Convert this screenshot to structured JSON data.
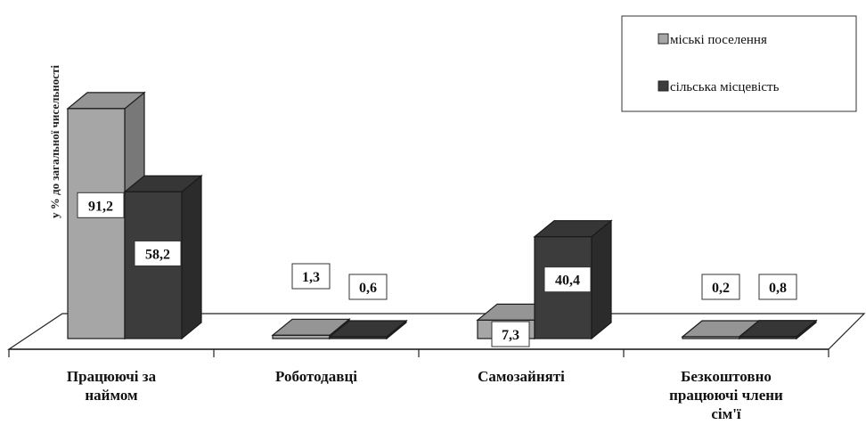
{
  "chart_data": {
    "type": "bar",
    "ylabel": "у % до загальної чисельності",
    "categories": [
      [
        "Працюючі за",
        "наймом"
      ],
      [
        "Роботодавці"
      ],
      [
        "Самозайняті"
      ],
      [
        "Безкоштовно",
        "працюючі члени",
        "сім'ї"
      ]
    ],
    "series": [
      {
        "name": "міські поселення",
        "values": [
          91.2,
          1.3,
          7.3,
          0.2
        ],
        "labels": [
          "91,2",
          "1,3",
          "7,3",
          "0,2"
        ],
        "color": "#a6a6a6"
      },
      {
        "name": "сільська місцевість",
        "values": [
          58.2,
          0.6,
          40.4,
          0.8
        ],
        "labels": [
          "58,2",
          "0,6",
          "40,4",
          "0,8"
        ],
        "color": "#3c3c3c"
      }
    ],
    "legend_position": "top-right",
    "three_d": true
  }
}
